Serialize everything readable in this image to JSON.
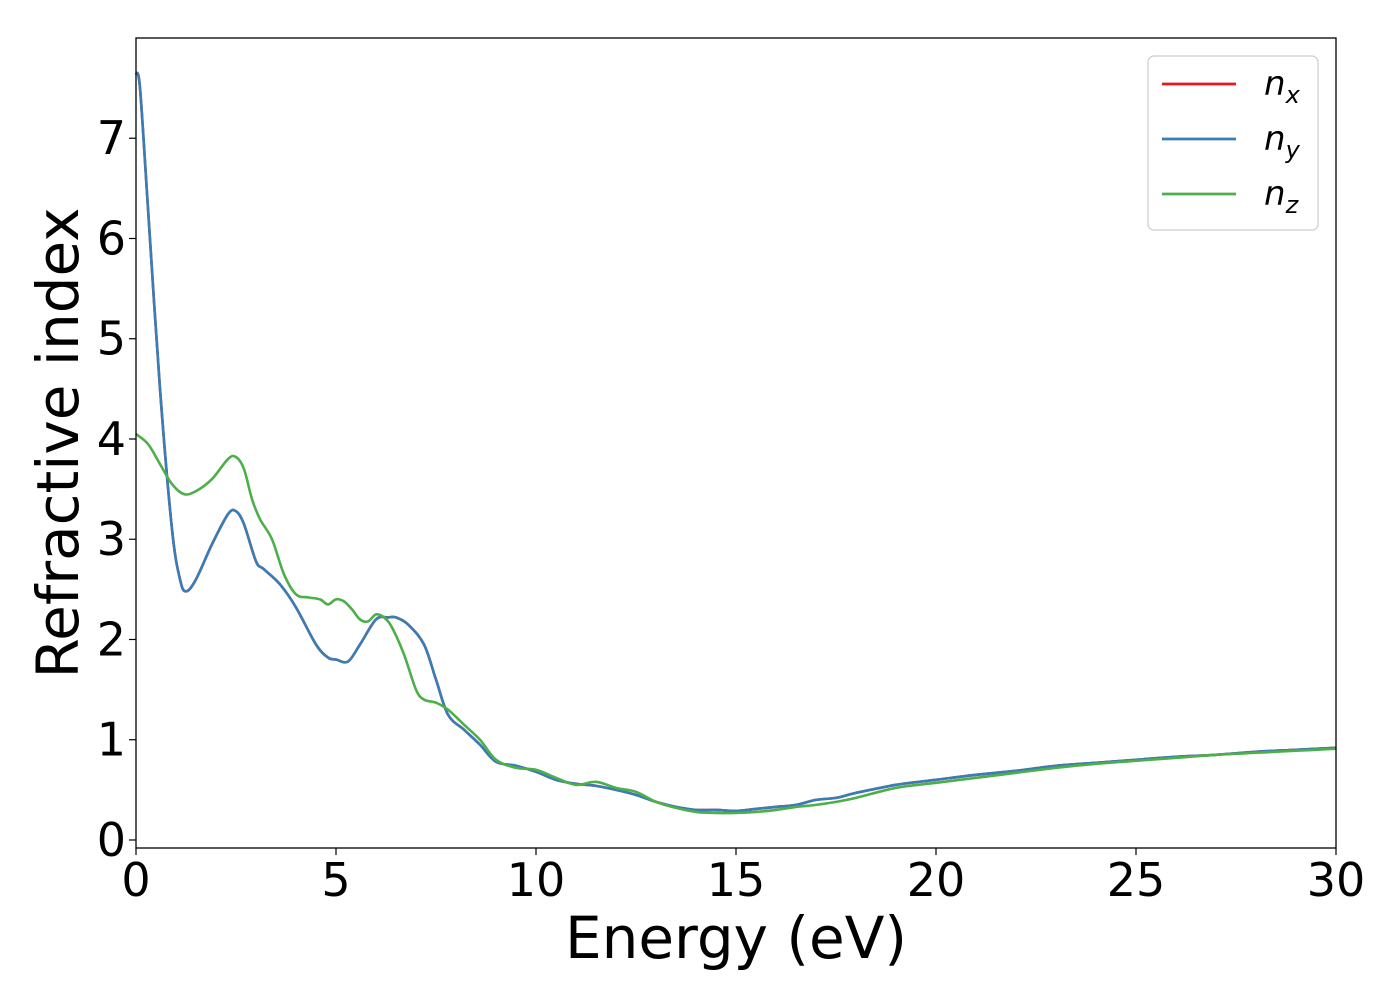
{
  "chart_data": {
    "type": "line",
    "xlabel": "Energy (eV)",
    "ylabel": "Refractive index",
    "xlim": [
      0,
      30
    ],
    "ylim": [
      -0.08,
      8.0
    ],
    "xticks": [
      0,
      5,
      10,
      15,
      20,
      25,
      30
    ],
    "yticks": [
      0,
      1,
      2,
      3,
      4,
      5,
      6,
      7
    ],
    "grid": false,
    "legend_position": "top-right",
    "series": [
      {
        "name": "n_x",
        "label_base": "n",
        "label_sub": "x",
        "color": "#e41a1c",
        "x": [
          0,
          0.1,
          0.3,
          0.6,
          0.9,
          1.1,
          1.25,
          1.5,
          1.9,
          2.3,
          2.5,
          2.7,
          3.0,
          3.2,
          3.6,
          4.0,
          4.5,
          4.8,
          5.0,
          5.3,
          5.6,
          6.0,
          6.3,
          6.5,
          6.8,
          7.2,
          7.5,
          7.8,
          8.2,
          8.6,
          9.0,
          9.5,
          10.0,
          10.5,
          11.0,
          11.5,
          12.0,
          12.5,
          13.0,
          13.5,
          14.0,
          14.5,
          15.0,
          15.5,
          16.0,
          16.5,
          17.0,
          17.5,
          18.0,
          19.0,
          20.0,
          21.0,
          22.0,
          23.0,
          24.0,
          25.0,
          26.0,
          27.0,
          28.0,
          29.0,
          30.0
        ],
        "values": [
          7.65,
          7.5,
          6.3,
          4.5,
          3.1,
          2.6,
          2.48,
          2.6,
          2.95,
          3.25,
          3.28,
          3.15,
          2.78,
          2.7,
          2.55,
          2.32,
          1.95,
          1.82,
          1.8,
          1.78,
          1.95,
          2.2,
          2.22,
          2.22,
          2.15,
          1.95,
          1.6,
          1.25,
          1.1,
          0.95,
          0.78,
          0.74,
          0.68,
          0.6,
          0.56,
          0.54,
          0.5,
          0.45,
          0.38,
          0.33,
          0.3,
          0.3,
          0.29,
          0.31,
          0.33,
          0.35,
          0.4,
          0.42,
          0.47,
          0.55,
          0.6,
          0.65,
          0.69,
          0.74,
          0.77,
          0.8,
          0.83,
          0.85,
          0.88,
          0.9,
          0.92
        ]
      },
      {
        "name": "n_y",
        "label_base": "n",
        "label_sub": "y",
        "color": "#377eb8",
        "x": [
          0,
          0.1,
          0.3,
          0.6,
          0.9,
          1.1,
          1.25,
          1.5,
          1.9,
          2.3,
          2.5,
          2.7,
          3.0,
          3.2,
          3.6,
          4.0,
          4.5,
          4.8,
          5.0,
          5.3,
          5.6,
          6.0,
          6.3,
          6.5,
          6.8,
          7.2,
          7.5,
          7.8,
          8.2,
          8.6,
          9.0,
          9.5,
          10.0,
          10.5,
          11.0,
          11.5,
          12.0,
          12.5,
          13.0,
          13.5,
          14.0,
          14.5,
          15.0,
          15.5,
          16.0,
          16.5,
          17.0,
          17.5,
          18.0,
          19.0,
          20.0,
          21.0,
          22.0,
          23.0,
          24.0,
          25.0,
          26.0,
          27.0,
          28.0,
          29.0,
          30.0
        ],
        "values": [
          7.65,
          7.5,
          6.3,
          4.5,
          3.1,
          2.6,
          2.48,
          2.6,
          2.95,
          3.25,
          3.28,
          3.15,
          2.78,
          2.7,
          2.55,
          2.32,
          1.95,
          1.82,
          1.8,
          1.78,
          1.95,
          2.2,
          2.22,
          2.22,
          2.15,
          1.95,
          1.6,
          1.25,
          1.1,
          0.95,
          0.78,
          0.74,
          0.68,
          0.6,
          0.56,
          0.54,
          0.5,
          0.45,
          0.38,
          0.33,
          0.3,
          0.3,
          0.29,
          0.31,
          0.33,
          0.35,
          0.4,
          0.42,
          0.47,
          0.55,
          0.6,
          0.65,
          0.69,
          0.74,
          0.77,
          0.8,
          0.83,
          0.85,
          0.88,
          0.9,
          0.92
        ]
      },
      {
        "name": "n_z",
        "label_base": "n",
        "label_sub": "z",
        "color": "#4daf4a",
        "x": [
          0,
          0.3,
          0.6,
          0.9,
          1.2,
          1.5,
          1.9,
          2.3,
          2.5,
          2.7,
          2.9,
          3.1,
          3.4,
          3.7,
          4.0,
          4.3,
          4.6,
          4.8,
          5.0,
          5.2,
          5.4,
          5.6,
          5.8,
          6.0,
          6.2,
          6.4,
          6.7,
          7.0,
          7.2,
          7.5,
          7.8,
          8.2,
          8.6,
          9.0,
          9.5,
          10.0,
          10.5,
          11.0,
          11.5,
          12.0,
          12.5,
          13.0,
          13.5,
          14.0,
          14.5,
          15.0,
          15.5,
          16.0,
          16.5,
          17.0,
          17.5,
          18.0,
          19.0,
          20.0,
          21.0,
          22.0,
          23.0,
          24.0,
          25.0,
          26.0,
          27.0,
          28.0,
          29.0,
          30.0
        ],
        "values": [
          4.05,
          3.95,
          3.75,
          3.55,
          3.45,
          3.48,
          3.6,
          3.8,
          3.82,
          3.7,
          3.4,
          3.2,
          3.0,
          2.65,
          2.45,
          2.42,
          2.4,
          2.35,
          2.4,
          2.38,
          2.3,
          2.2,
          2.18,
          2.25,
          2.22,
          2.12,
          1.85,
          1.5,
          1.4,
          1.37,
          1.3,
          1.15,
          1.0,
          0.8,
          0.72,
          0.7,
          0.62,
          0.55,
          0.58,
          0.52,
          0.48,
          0.38,
          0.32,
          0.28,
          0.27,
          0.27,
          0.28,
          0.3,
          0.33,
          0.35,
          0.38,
          0.42,
          0.52,
          0.57,
          0.62,
          0.67,
          0.72,
          0.76,
          0.79,
          0.82,
          0.85,
          0.87,
          0.89,
          0.91
        ]
      }
    ]
  }
}
